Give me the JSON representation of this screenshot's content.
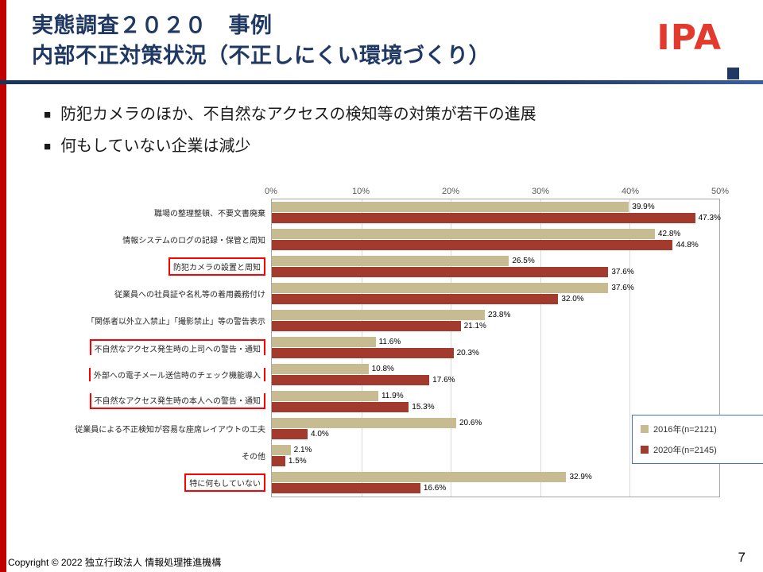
{
  "slide": {
    "title_line1": "実態調査２０２０　事例",
    "title_line2": "内部不正対策状況（不正しにくい環境づくり）",
    "logo_text": "IPA",
    "bullets": [
      "防犯カメラのほか、不自然なアクセスの検知等の対策が若干の進展",
      "何もしていない企業は減少"
    ],
    "bullet_marker": "■",
    "footer": {
      "copyright": "Copyright © 2022 独立行政法人 情報処理推進機構",
      "page_number": "7"
    }
  },
  "colors": {
    "title_navy": "#1f3864",
    "stripe_red": "#c00000",
    "logo_red": "#e33a2e",
    "highlight_box_red": "#ff0000",
    "series_2016": "#c7bb92",
    "series_2020": "#a23b2e",
    "legend_border_blue": "#4472c4"
  },
  "chart_data": {
    "type": "bar",
    "orientation": "horizontal",
    "xlim": [
      0,
      50
    ],
    "x_ticks": [
      "0%",
      "10%",
      "20%",
      "30%",
      "40%",
      "50%"
    ],
    "grid": true,
    "legend_position": "right",
    "categories": [
      "職場の整理整頓、不要文書廃棄",
      "情報システムのログの記録・保管と周知",
      "防犯カメラの設置と周知",
      "従業員への社員証や名札等の着用義務付け",
      "「関係者以外立入禁止」「撮影禁止」等の警告表示",
      "不自然なアクセス発生時の上司への警告・通知",
      "外部への電子メール送信時のチェック機能導入",
      "不自然なアクセス発生時の本人への警告・通知",
      "従業員による不正検知が容易な座席レイアウトの工夫",
      "その他",
      "特に何もしていない"
    ],
    "highlight_boxes": [
      [
        2,
        2
      ],
      [
        5,
        7
      ],
      [
        10,
        10
      ]
    ],
    "series": [
      {
        "name": "2016年(n=2121)",
        "color": "#c7bb92",
        "values": [
          39.9,
          42.8,
          26.5,
          37.6,
          23.8,
          11.6,
          10.8,
          11.9,
          20.6,
          2.1,
          32.9
        ]
      },
      {
        "name": "2020年(n=2145)",
        "color": "#a23b2e",
        "values": [
          47.3,
          44.8,
          37.6,
          32.0,
          21.1,
          20.3,
          17.6,
          15.3,
          4.0,
          1.5,
          16.6
        ]
      }
    ]
  }
}
